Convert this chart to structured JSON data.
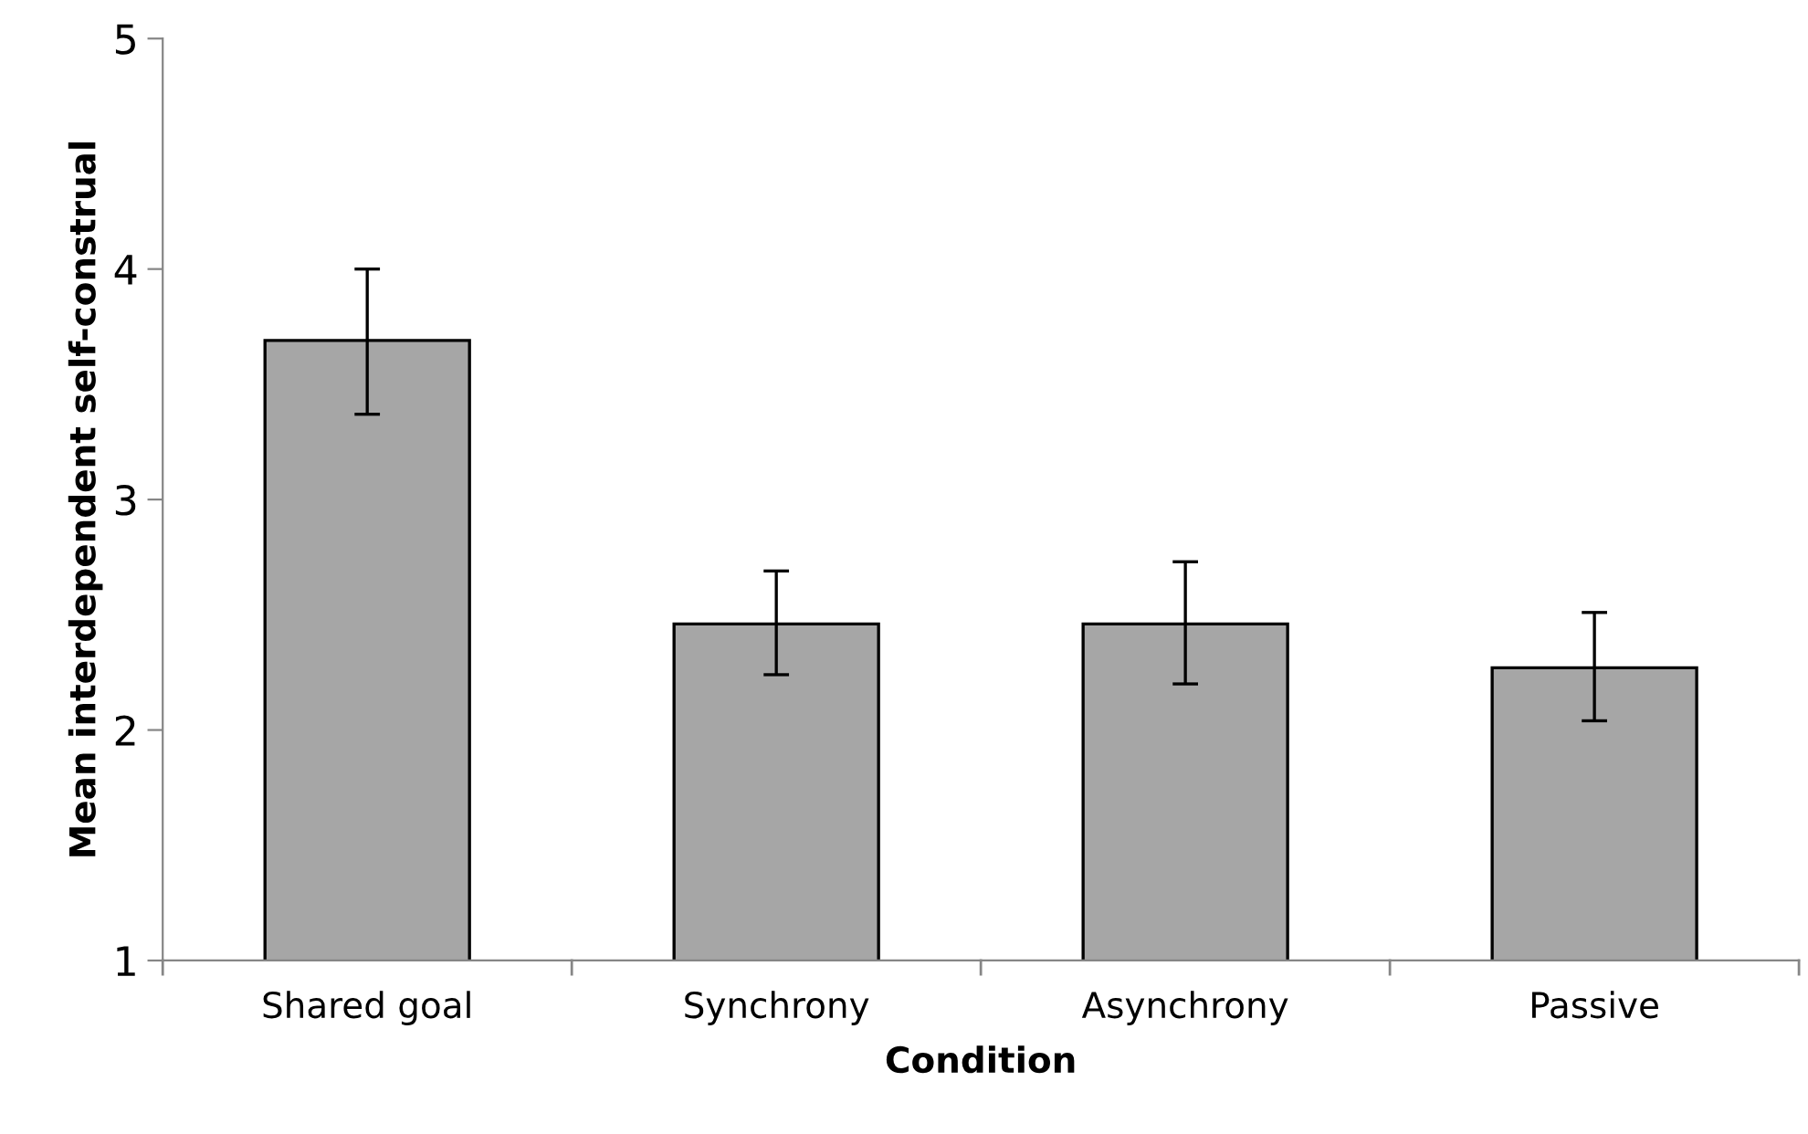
{
  "chart_data": {
    "type": "bar",
    "xlabel": "Condition",
    "ylabel": "Mean interdependent self-construal",
    "categories": [
      "Shared goal",
      "Synchrony",
      "Asynchrony",
      "Passive"
    ],
    "values": [
      3.69,
      2.46,
      2.46,
      2.27
    ],
    "color": "#a6a6a6",
    "errors": [
      [
        3.37,
        4.0
      ],
      [
        2.24,
        2.69
      ],
      [
        2.2,
        2.73
      ],
      [
        2.04,
        2.51
      ]
    ],
    "ylim": [
      1,
      5
    ],
    "yticks": [
      1,
      2,
      3,
      4,
      5
    ],
    "grid": false,
    "legend": false
  }
}
